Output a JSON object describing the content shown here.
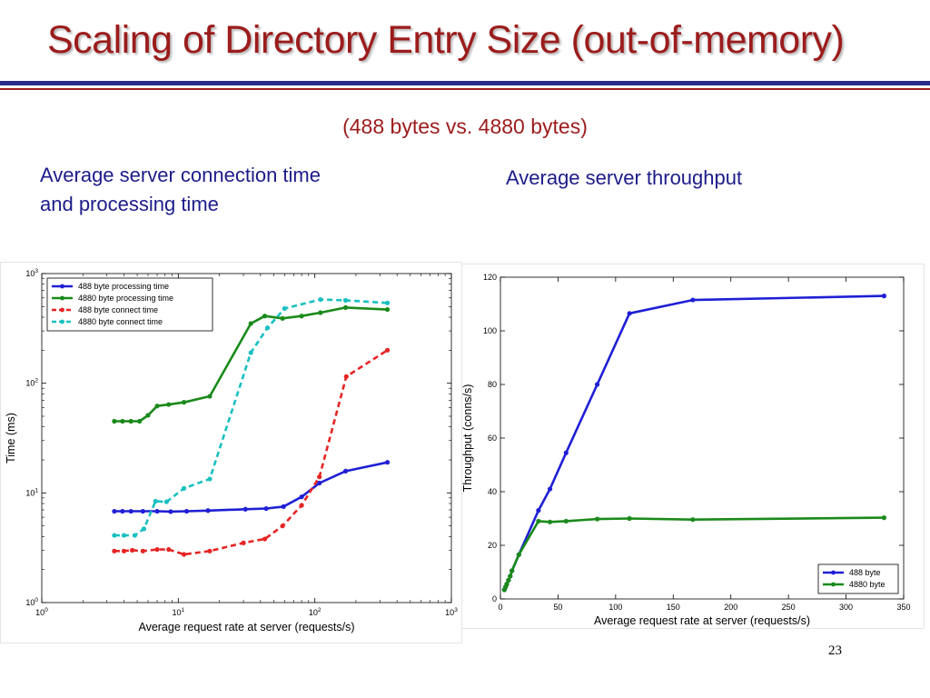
{
  "slide": {
    "title": "Scaling of Directory Entry Size (out-of-memory)",
    "subtitle": "(488 bytes vs. 4880 bytes)",
    "caption_left_line1": "Average server connection time",
    "caption_left_line2": "and  processing time",
    "caption_right": "Average server throughput",
    "page_number": "23",
    "colors": {
      "title": "#9c1c1c",
      "caption": "#1c1c8a",
      "rule_blue": "#2a2a8c",
      "rule_red": "#9c1c1c"
    }
  },
  "chart_data": [
    {
      "type": "line",
      "xscale": "log",
      "yscale": "log",
      "xlabel": "Average request rate at server (requests/s)",
      "ylabel": "Time (ms)",
      "xlim": [
        1,
        1000
      ],
      "ylim": [
        1,
        1000
      ],
      "xticks": [
        1,
        10,
        100,
        1000
      ],
      "yticks": [
        1,
        10,
        100,
        1000
      ],
      "grid": false,
      "legend": "top-left",
      "series": [
        {
          "name": "488 byte processing time",
          "color": "#1f1fd6",
          "dash": false,
          "points": [
            [
              3.4,
              6.8
            ],
            [
              3.9,
              6.8
            ],
            [
              4.5,
              6.8
            ],
            [
              5.5,
              6.8
            ],
            [
              7,
              6.8
            ],
            [
              8.8,
              6.75
            ],
            [
              11.5,
              6.8
            ],
            [
              16.5,
              6.9
            ],
            [
              31,
              7.1
            ],
            [
              44,
              7.2
            ],
            [
              59,
              7.5
            ],
            [
              80,
              9.2
            ],
            [
              108,
              12.3
            ],
            [
              168,
              15.8
            ],
            [
              340,
              19
            ]
          ]
        },
        {
          "name": "4880 byte processing time",
          "color": "#1a8a1a",
          "dash": false,
          "points": [
            [
              3.4,
              45
            ],
            [
              3.9,
              45
            ],
            [
              4.5,
              45
            ],
            [
              5.2,
              45
            ],
            [
              6,
              51
            ],
            [
              7,
              62
            ],
            [
              8.5,
              64
            ],
            [
              11,
              67
            ],
            [
              17,
              76
            ],
            [
              34,
              350
            ],
            [
              43,
              410
            ],
            [
              58,
              390
            ],
            [
              80,
              410
            ],
            [
              110,
              440
            ],
            [
              168,
              490
            ],
            [
              340,
              470
            ]
          ]
        },
        {
          "name": "488 byte connect time",
          "color": "#e62424",
          "dash": true,
          "points": [
            [
              3.4,
              2.95
            ],
            [
              4,
              2.95
            ],
            [
              4.6,
              3
            ],
            [
              5.5,
              2.95
            ],
            [
              7,
              3.05
            ],
            [
              8.5,
              3.05
            ],
            [
              11,
              2.75
            ],
            [
              17,
              2.95
            ],
            [
              30,
              3.5
            ],
            [
              43,
              3.8
            ],
            [
              58,
              5
            ],
            [
              80,
              7.7
            ],
            [
              108,
              14
            ],
            [
              170,
              115
            ],
            [
              340,
              200
            ]
          ]
        },
        {
          "name": "4880 byte connect time",
          "color": "#1ac0c0",
          "dash": true,
          "points": [
            [
              3.4,
              4.1
            ],
            [
              4,
              4.1
            ],
            [
              4.8,
              4.1
            ],
            [
              5.6,
              4.7
            ],
            [
              6.8,
              8.4
            ],
            [
              8.2,
              8.3
            ],
            [
              11,
              11
            ],
            [
              17,
              13.4
            ],
            [
              34,
              190
            ],
            [
              45,
              320
            ],
            [
              60,
              480
            ],
            [
              110,
              580
            ],
            [
              168,
              570
            ],
            [
              340,
              540
            ]
          ]
        }
      ]
    },
    {
      "type": "line",
      "xlabel": "Average request rate at server (requests/s)",
      "ylabel": "Throughput (conns/s)",
      "xlim": [
        0,
        350
      ],
      "ylim": [
        0,
        120
      ],
      "xticks": [
        0,
        50,
        100,
        150,
        200,
        250,
        300,
        350
      ],
      "yticks": [
        0,
        20,
        40,
        60,
        80,
        100,
        120
      ],
      "grid": false,
      "legend": "bottom-right",
      "series": [
        {
          "name": "488 byte",
          "color": "#1f1fd6",
          "points": [
            [
              3.4,
              3.4
            ],
            [
              4.5,
              4.5
            ],
            [
              5.5,
              5.5
            ],
            [
              7,
              7
            ],
            [
              8.5,
              8.5
            ],
            [
              10,
              10.5
            ],
            [
              16,
              16.5
            ],
            [
              33,
              33
            ],
            [
              43,
              41
            ],
            [
              57,
              54.5
            ],
            [
              84,
              80
            ],
            [
              112,
              106.5
            ],
            [
              167,
              111.5
            ],
            [
              333,
              113
            ]
          ]
        },
        {
          "name": "4880 byte",
          "color": "#1a8a1a",
          "points": [
            [
              3.4,
              3.4
            ],
            [
              4.5,
              4.5
            ],
            [
              5.5,
              5.5
            ],
            [
              7,
              7
            ],
            [
              8.5,
              8.5
            ],
            [
              10,
              10.5
            ],
            [
              16,
              16.5
            ],
            [
              33,
              29
            ],
            [
              43,
              28.7
            ],
            [
              57,
              29
            ],
            [
              84,
              29.8
            ],
            [
              112,
              30
            ],
            [
              167,
              29.6
            ],
            [
              333,
              30.3
            ]
          ]
        }
      ]
    }
  ]
}
